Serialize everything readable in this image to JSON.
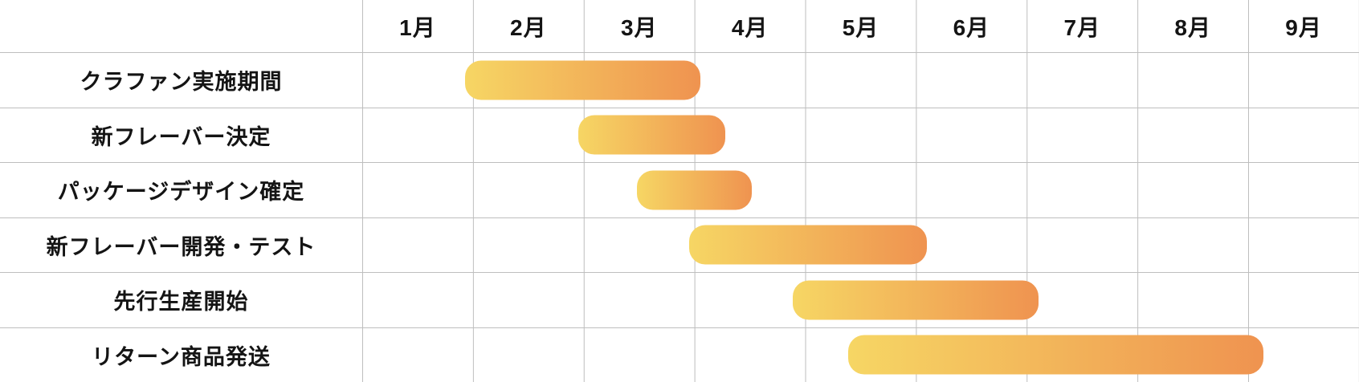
{
  "chart_data": {
    "type": "gantt",
    "title": "",
    "months": [
      "1月",
      "2月",
      "3月",
      "4月",
      "5月",
      "6月",
      "7月",
      "8月",
      "9月"
    ],
    "axis_range_months": [
      1,
      10
    ],
    "tasks": [
      {
        "label": "クラファン実施期間",
        "start_month": 1.93,
        "end_month": 4.05
      },
      {
        "label": "新フレーバー決定",
        "start_month": 2.95,
        "end_month": 4.28
      },
      {
        "label": "パッケージデザイン確定",
        "start_month": 3.48,
        "end_month": 4.52
      },
      {
        "label": "新フレーバー開発・テスト",
        "start_month": 3.95,
        "end_month": 6.1
      },
      {
        "label": "先行生産開始",
        "start_month": 4.89,
        "end_month": 7.11
      },
      {
        "label": "リターン商品発送",
        "start_month": 5.39,
        "end_month": 9.14
      }
    ],
    "layout": {
      "grid": "on",
      "legend": "none",
      "label_column": "left",
      "header_row": "top"
    },
    "colors": {
      "bar_gradient_start": "#F6D664",
      "bar_gradient_end": "#EF9350",
      "grid_line": "#BEBEBE",
      "text": "#141414",
      "background": "#FFFFFF"
    }
  }
}
